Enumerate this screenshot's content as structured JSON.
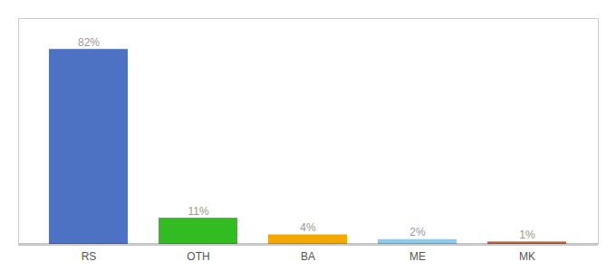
{
  "chart_data": {
    "type": "bar",
    "categories": [
      "RS",
      "OTH",
      "BA",
      "ME",
      "MK"
    ],
    "values": [
      82,
      11,
      4,
      2,
      1
    ],
    "value_labels": [
      "82%",
      "11%",
      "4%",
      "2%",
      "1%"
    ],
    "colors": [
      "#4d72c4",
      "#33bb22",
      "#f5a800",
      "#88ccee",
      "#c0623a"
    ],
    "ylim": [
      0,
      95
    ],
    "data_labels": true,
    "tick_labels": "x",
    "grid": false
  }
}
